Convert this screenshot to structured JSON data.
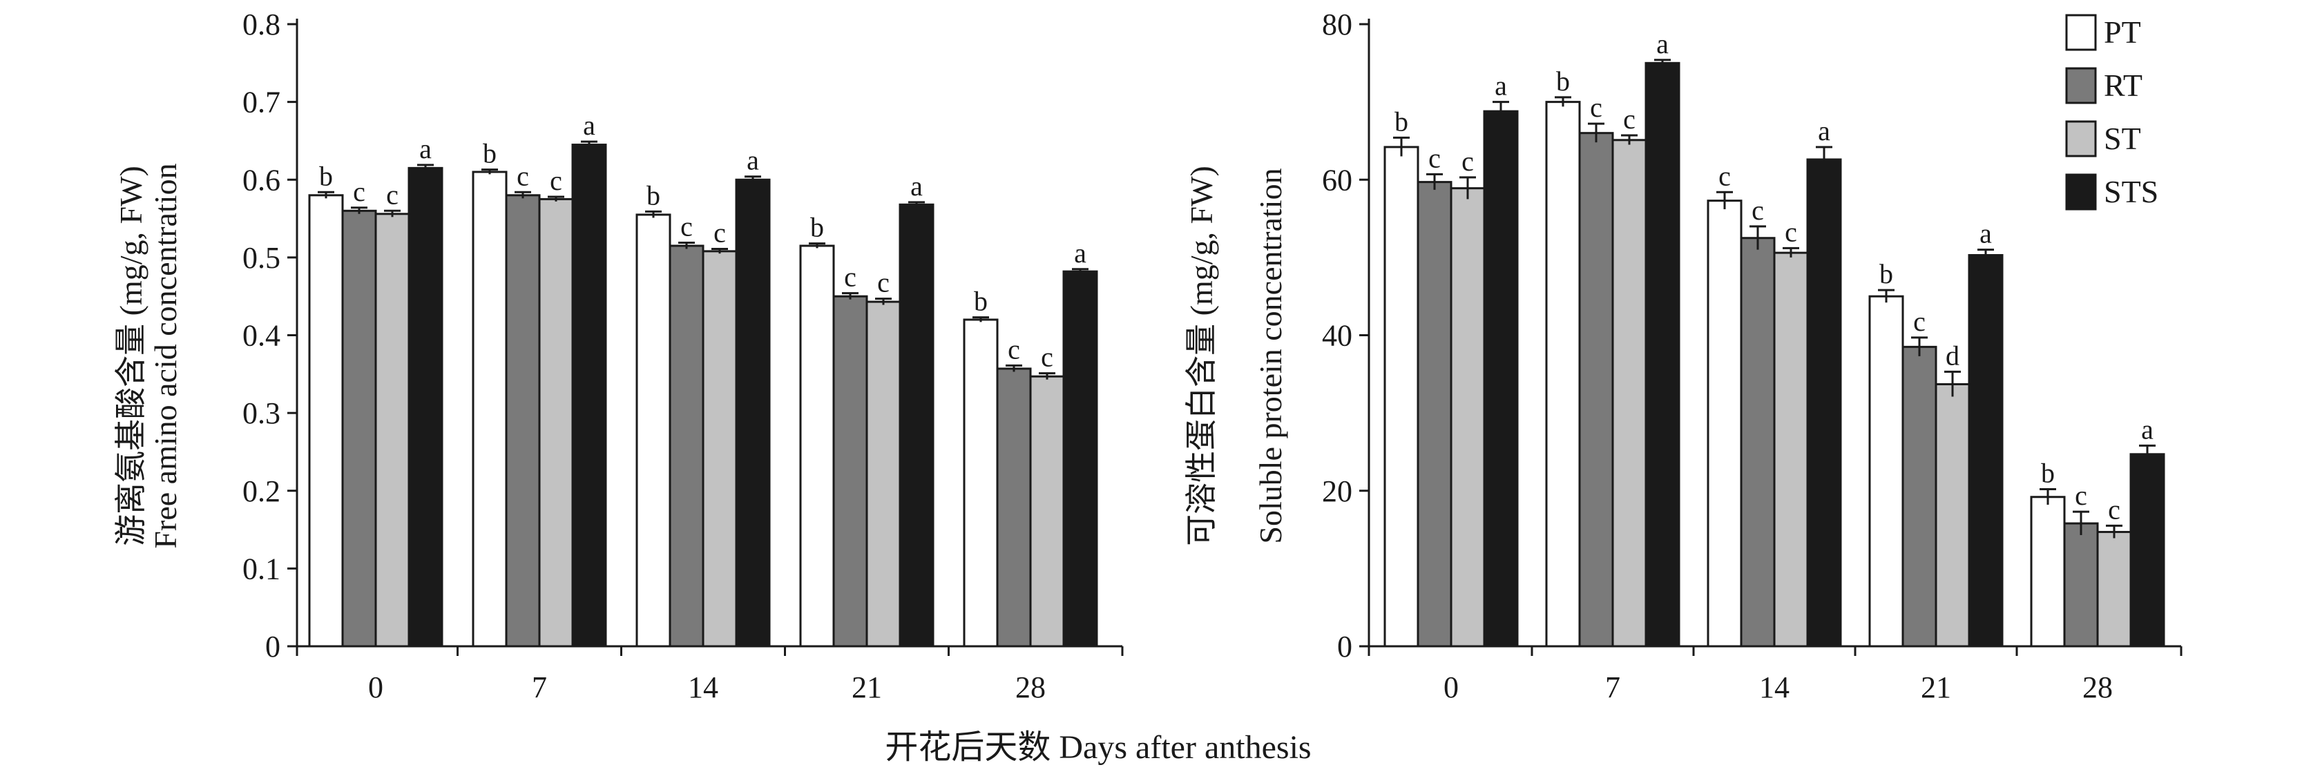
{
  "common_xlabel": "开花后天数 Days after anthesis",
  "legend": [
    {
      "name": "PT",
      "color": "#ffffff"
    },
    {
      "name": "RT",
      "color": "#7a7a7a"
    },
    {
      "name": "ST",
      "color": "#c2c2c2"
    },
    {
      "name": "STS",
      "color": "#1a1a1a"
    }
  ],
  "chart_data": [
    {
      "type": "bar",
      "ylabel_cn": "游离氨基酸含量 (mg/g, FW)",
      "ylabel_en": "Free amino acid concentration",
      "ylim": [
        0,
        0.8
      ],
      "yticks": [
        "0",
        "0.1",
        "0.2",
        "0.3",
        "0.4",
        "0.5",
        "0.6",
        "0.7",
        "0.8"
      ],
      "categories": [
        "0",
        "7",
        "14",
        "21",
        "28"
      ],
      "series": [
        {
          "name": "PT",
          "values": [
            0.58,
            0.61,
            0.555,
            0.515,
            0.42
          ],
          "errors": [
            0.004,
            0.003,
            0.004,
            0.003,
            0.003
          ],
          "labels": [
            "b",
            "b",
            "b",
            "b",
            "b"
          ]
        },
        {
          "name": "RT",
          "values": [
            0.56,
            0.58,
            0.515,
            0.45,
            0.357
          ],
          "errors": [
            0.004,
            0.004,
            0.004,
            0.004,
            0.004
          ],
          "labels": [
            "c",
            "c",
            "c",
            "c",
            "c"
          ]
        },
        {
          "name": "ST",
          "values": [
            0.556,
            0.575,
            0.508,
            0.443,
            0.347
          ],
          "errors": [
            0.004,
            0.003,
            0.003,
            0.004,
            0.004
          ],
          "labels": [
            "c",
            "c",
            "c",
            "c",
            "c"
          ]
        },
        {
          "name": "STS",
          "values": [
            0.615,
            0.645,
            0.6,
            0.568,
            0.482
          ],
          "errors": [
            0.004,
            0.004,
            0.004,
            0.003,
            0.003
          ],
          "labels": [
            "a",
            "a",
            "a",
            "a",
            "a"
          ]
        }
      ]
    },
    {
      "type": "bar",
      "ylabel_cn": "可溶性蛋白含量 (mg/g, FW)",
      "ylabel_en": "Soluble protein concentration",
      "ylim": [
        0,
        80
      ],
      "yticks": [
        "0",
        "20",
        "40",
        "60",
        "80"
      ],
      "categories": [
        "0",
        "7",
        "14",
        "21",
        "28"
      ],
      "series": [
        {
          "name": "PT",
          "values": [
            64.2,
            70.0,
            57.3,
            45.0,
            19.2
          ],
          "errors": [
            1.2,
            0.6,
            1.1,
            0.8,
            1.0
          ],
          "labels": [
            "b",
            "b",
            "c",
            "b",
            "b"
          ]
        },
        {
          "name": "RT",
          "values": [
            59.7,
            66.0,
            52.5,
            38.5,
            15.8
          ],
          "errors": [
            1.0,
            1.2,
            1.5,
            1.2,
            1.5
          ],
          "labels": [
            "c",
            "c",
            "c",
            "c",
            "c"
          ]
        },
        {
          "name": "ST",
          "values": [
            58.9,
            65.1,
            50.6,
            33.7,
            14.7
          ],
          "errors": [
            1.4,
            0.6,
            0.6,
            1.6,
            0.8
          ],
          "labels": [
            "c",
            "c",
            "c",
            "d",
            "c"
          ]
        },
        {
          "name": "STS",
          "values": [
            68.8,
            75.0,
            62.6,
            50.3,
            24.7
          ],
          "errors": [
            1.2,
            0.4,
            1.6,
            0.7,
            1.1
          ],
          "labels": [
            "a",
            "a",
            "a",
            "a",
            "a"
          ]
        }
      ]
    }
  ]
}
